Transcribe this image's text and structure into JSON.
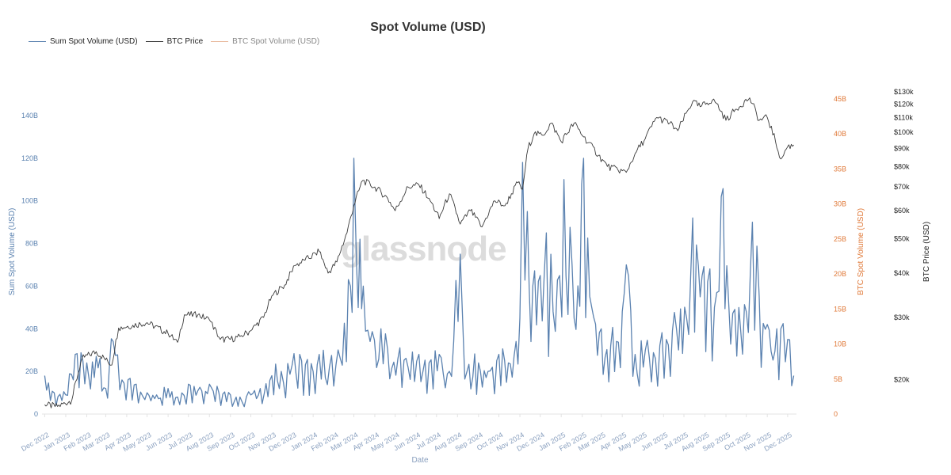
{
  "chart_data": {
    "type": "line",
    "title": "Spot Volume (USD)",
    "watermark": "glassnode",
    "xlabel": "Date",
    "x_ticks": [
      "Dec 2022",
      "Jan 2023",
      "Feb 2023",
      "Mar 2023",
      "Apr 2023",
      "May 2023",
      "Jun 2023",
      "Jul 2023",
      "Aug 2023",
      "Sep 2023",
      "Oct 2023",
      "Nov 2023",
      "Dec 2023",
      "Jan 2024",
      "Feb 2024",
      "Mar 2024",
      "Apr 2024",
      "May 2024",
      "Jun 2024",
      "Jul 2024",
      "Aug 2024",
      "Sep 2024",
      "Oct 2024",
      "Nov 2024",
      "Dec 2024",
      "Jan 2025",
      "Feb 2025",
      "Mar 2025",
      "Apr 2025",
      "May 2025",
      "Jun 2025",
      "Jul 2025",
      "Aug 2025",
      "Sep 2025",
      "Oct 2025",
      "Nov 2025",
      "Dec 2025"
    ],
    "y_left": {
      "label": "Sum Spot Volume (USD)",
      "ticks": [
        "0",
        "20B",
        "40B",
        "60B",
        "80B",
        "100B",
        "120B",
        "140B"
      ],
      "range": [
        0,
        140
      ]
    },
    "y_right1": {
      "label": "BTC Spot Volume (USD)",
      "ticks": [
        "0",
        "5B",
        "10B",
        "15B",
        "20B",
        "25B",
        "30B",
        "35B",
        "40B",
        "45B"
      ],
      "range": [
        0,
        45
      ]
    },
    "y_right2": {
      "label": "BTC Price (USD)",
      "scale": "log",
      "ticks": [
        "$20k",
        "$30k",
        "$40k",
        "$50k",
        "$60k",
        "$70k",
        "$80k",
        "$90k",
        "$100k",
        "$110k",
        "$120k",
        "$130k"
      ],
      "range": [
        16000,
        132000
      ]
    },
    "legend_position": "top-left",
    "series": [
      {
        "name": "Sum Spot Volume (USD)",
        "color": "#5b82b0",
        "axis": "left",
        "unit": "B",
        "x": [
          "2022-12-01",
          "2022-12-15",
          "2023-01-01",
          "2023-01-15",
          "2023-02-01",
          "2023-02-15",
          "2023-03-01",
          "2023-03-12",
          "2023-03-25",
          "2023-04-15",
          "2023-05-01",
          "2023-05-15",
          "2023-06-01",
          "2023-06-15",
          "2023-07-01",
          "2023-07-15",
          "2023-08-01",
          "2023-08-15",
          "2023-09-01",
          "2023-09-15",
          "2023-10-01",
          "2023-10-15",
          "2023-11-01",
          "2023-11-15",
          "2023-12-01",
          "2023-12-15",
          "2024-01-01",
          "2024-01-10",
          "2024-01-25",
          "2024-02-10",
          "2024-02-25",
          "2024-03-01",
          "2024-03-05",
          "2024-03-10",
          "2024-03-15",
          "2024-03-25",
          "2024-04-10",
          "2024-04-20",
          "2024-05-05",
          "2024-05-20",
          "2024-06-05",
          "2024-06-20",
          "2024-07-05",
          "2024-07-20",
          "2024-08-05",
          "2024-08-15",
          "2024-09-01",
          "2024-09-15",
          "2024-10-01",
          "2024-10-15",
          "2024-11-01",
          "2024-11-05",
          "2024-11-12",
          "2024-11-20",
          "2024-12-01",
          "2024-12-10",
          "2024-12-20",
          "2025-01-05",
          "2025-01-20",
          "2025-02-03",
          "2025-02-15",
          "2025-03-01",
          "2025-03-15",
          "2025-04-01",
          "2025-04-07",
          "2025-04-20",
          "2025-05-05",
          "2025-05-20",
          "2025-06-05",
          "2025-06-20",
          "2025-07-05",
          "2025-07-14",
          "2025-07-25",
          "2025-08-05",
          "2025-08-15",
          "2025-08-25",
          "2025-09-05",
          "2025-09-20",
          "2025-10-01",
          "2025-10-10",
          "2025-10-20",
          "2025-11-01",
          "2025-11-15",
          "2025-11-21",
          "2025-12-01",
          "2025-12-10"
        ],
        "values": [
          18,
          10,
          9,
          28,
          24,
          27,
          12,
          34,
          16,
          14,
          10,
          9,
          12,
          8,
          14,
          11,
          14,
          10,
          9,
          8,
          9,
          12,
          18,
          20,
          23,
          25,
          20,
          28,
          22,
          26,
          60,
          120,
          70,
          82,
          60,
          34,
          40,
          30,
          26,
          22,
          28,
          24,
          28,
          20,
          75,
          20,
          24,
          20,
          28,
          24,
          45,
          118,
          95,
          60,
          65,
          85,
          48,
          110,
          45,
          120,
          50,
          40,
          32,
          48,
          70,
          28,
          30,
          26,
          35,
          40,
          45,
          92,
          55,
          62,
          50,
          102,
          52,
          50,
          48,
          90,
          55,
          42,
          40,
          40,
          35,
          18
        ]
      },
      {
        "name": "BTC Price",
        "color": "#3a3a3a",
        "axis": "right2",
        "unit": "USD",
        "x": [
          "2022-12-01",
          "2022-12-20",
          "2023-01-10",
          "2023-01-25",
          "2023-02-15",
          "2023-03-10",
          "2023-03-20",
          "2023-04-10",
          "2023-05-01",
          "2023-06-01",
          "2023-06-15",
          "2023-06-25",
          "2023-07-15",
          "2023-08-01",
          "2023-08-17",
          "2023-09-01",
          "2023-09-15",
          "2023-10-01",
          "2023-10-20",
          "2023-11-01",
          "2023-11-20",
          "2023-12-05",
          "2023-12-20",
          "2024-01-10",
          "2024-01-23",
          "2024-02-05",
          "2024-02-20",
          "2024-03-01",
          "2024-03-14",
          "2024-04-01",
          "2024-04-20",
          "2024-05-01",
          "2024-05-20",
          "2024-06-05",
          "2024-06-20",
          "2024-07-05",
          "2024-07-20",
          "2024-08-05",
          "2024-08-20",
          "2024-09-06",
          "2024-09-25",
          "2024-10-10",
          "2024-10-29",
          "2024-11-05",
          "2024-11-13",
          "2024-11-22",
          "2024-12-05",
          "2024-12-17",
          "2025-01-01",
          "2025-01-20",
          "2025-02-03",
          "2025-02-25",
          "2025-03-10",
          "2025-04-07",
          "2025-04-20",
          "2025-05-05",
          "2025-05-22",
          "2025-06-10",
          "2025-06-22",
          "2025-07-14",
          "2025-07-25",
          "2025-08-14",
          "2025-09-01",
          "2025-09-15",
          "2025-10-06",
          "2025-10-20",
          "2025-11-01",
          "2025-11-21",
          "2025-12-01",
          "2025-12-10"
        ],
        "values": [
          17000,
          16800,
          17500,
          23000,
          24000,
          22000,
          28000,
          28500,
          29000,
          27000,
          25500,
          30500,
          30500,
          29500,
          26000,
          26000,
          26500,
          27500,
          30000,
          34500,
          37000,
          42000,
          43500,
          46000,
          40000,
          43000,
          52000,
          62000,
          73000,
          70000,
          65000,
          60000,
          70000,
          71000,
          65000,
          57000,
          67000,
          55000,
          60000,
          54000,
          64000,
          62000,
          72000,
          69000,
          90000,
          99000,
          98000,
          106000,
          94000,
          106000,
          97000,
          86000,
          80000,
          77000,
          87000,
          96000,
          110000,
          106000,
          101000,
          122000,
          118000,
          124000,
          108000,
          116000,
          125000,
          108000,
          110000,
          84000,
          91000,
          92000
        ]
      },
      {
        "name": "BTC Spot Volume (USD)",
        "color": "#e8a07a",
        "axis": "right1",
        "unit": "B",
        "hidden": true,
        "x": [],
        "values": []
      }
    ]
  }
}
